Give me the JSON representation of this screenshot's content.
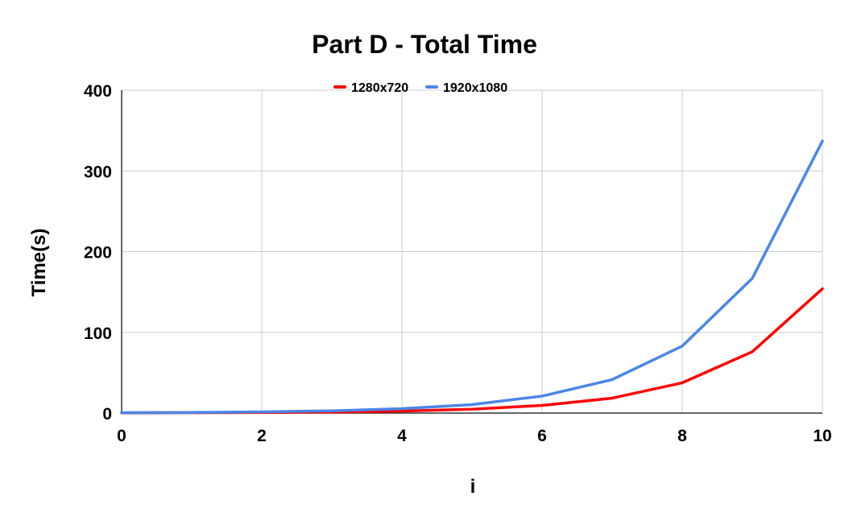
{
  "chart_data": {
    "type": "line",
    "title": "Part D - Total Time",
    "xlabel": "i",
    "ylabel": "Time(s)",
    "xlim": [
      0,
      10
    ],
    "ylim": [
      0,
      400
    ],
    "x_ticks": [
      0,
      2,
      4,
      6,
      8,
      10
    ],
    "y_ticks": [
      0,
      100,
      200,
      300,
      400
    ],
    "grid": true,
    "legend_position": "top",
    "x": [
      0,
      1,
      2,
      3,
      4,
      5,
      6,
      7,
      8,
      9,
      10
    ],
    "series": [
      {
        "name": "1280x720",
        "color": "#ff0000",
        "values": [
          0.3,
          0.5,
          0.8,
          1.3,
          2.5,
          4.8,
          9.5,
          18.5,
          37.5,
          76,
          154
        ]
      },
      {
        "name": "1920x1080",
        "color": "#4a86e8",
        "values": [
          0.5,
          0.8,
          1.5,
          2.8,
          5.5,
          10.5,
          21,
          41.5,
          83,
          167,
          337
        ]
      }
    ]
  }
}
